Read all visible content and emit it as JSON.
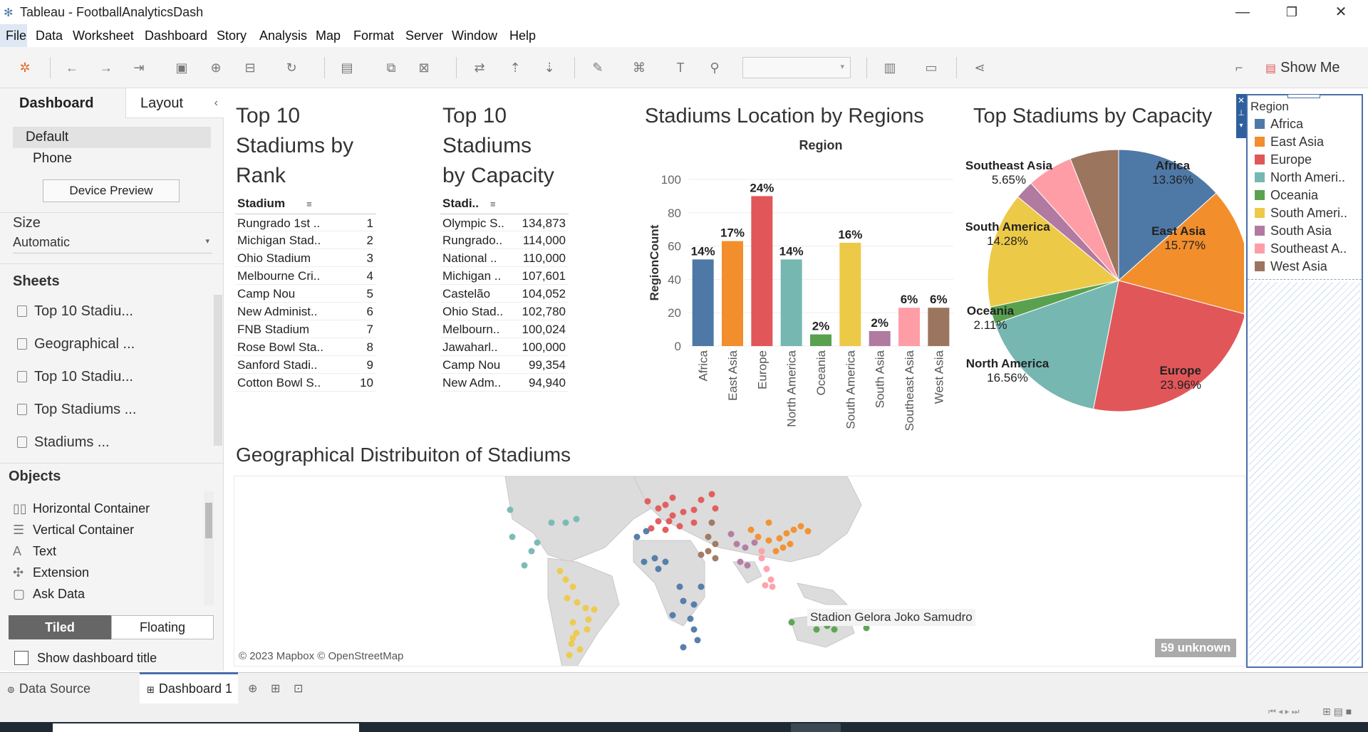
{
  "window": {
    "title": "Tableau - FootballAnalyticsDash"
  },
  "menu": [
    "File",
    "Data",
    "Worksheet",
    "Dashboard",
    "Story",
    "Analysis",
    "Map",
    "Format",
    "Server",
    "Window",
    "Help"
  ],
  "toolbar": {
    "show_me": "Show Me"
  },
  "left_pane": {
    "tabs": {
      "dashboard": "Dashboard",
      "layout": "Layout"
    },
    "device": {
      "default": "Default",
      "phone": "Phone",
      "preview_button": "Device Preview"
    },
    "size": {
      "label": "Size",
      "value": "Automatic"
    },
    "sheets": {
      "label": "Sheets",
      "items": [
        "Top 10 Stadiu...",
        "Geographical ...",
        "Top 10 Stadiu...",
        "Top Stadiums ...",
        "Stadiums ..."
      ]
    },
    "objects": {
      "label": "Objects",
      "items": [
        "Horizontal Container",
        "Vertical Container",
        "Text",
        "Extension",
        "Ask Data"
      ]
    },
    "layout_mode": {
      "tiled": "Tiled",
      "floating": "Floating"
    },
    "show_title": "Show dashboard title"
  },
  "rank_table": {
    "title_lines": [
      "Top 10",
      "Stadiums by",
      "Rank"
    ],
    "header": "Stadium",
    "rows": [
      {
        "name": "Rungrado 1st ..",
        "rank": "1"
      },
      {
        "name": "Michigan Stad..",
        "rank": "2"
      },
      {
        "name": "Ohio Stadium",
        "rank": "3"
      },
      {
        "name": "Melbourne Cri..",
        "rank": "4"
      },
      {
        "name": "Camp Nou",
        "rank": "5"
      },
      {
        "name": "New Administ..",
        "rank": "6"
      },
      {
        "name": "FNB Stadium",
        "rank": "7"
      },
      {
        "name": "Rose Bowl Sta..",
        "rank": "8"
      },
      {
        "name": "Sanford Stadi..",
        "rank": "9"
      },
      {
        "name": "Cotton Bowl S..",
        "rank": "10"
      }
    ]
  },
  "capacity_table": {
    "title_lines": [
      "Top 10",
      "Stadiums",
      "by Capacity"
    ],
    "header": "Stadi..",
    "rows": [
      {
        "name": "Olympic S..",
        "cap": "134,873"
      },
      {
        "name": "Rungrado..",
        "cap": "114,000"
      },
      {
        "name": "National ..",
        "cap": "110,000"
      },
      {
        "name": "Michigan ..",
        "cap": "107,601"
      },
      {
        "name": "Castelão",
        "cap": "104,052"
      },
      {
        "name": "Ohio Stad..",
        "cap": "102,780"
      },
      {
        "name": "Melbourn..",
        "cap": "100,024"
      },
      {
        "name": "Jawaharl..",
        "cap": "100,000"
      },
      {
        "name": "Camp Nou",
        "cap": "99,354"
      },
      {
        "name": "New Adm..",
        "cap": "94,940"
      }
    ]
  },
  "colors": {
    "Africa": "#4e79a7",
    "East Asia": "#f28e2b",
    "Europe": "#e15759",
    "North America": "#76b7b2",
    "Oceania": "#59a14f",
    "South America": "#edc948",
    "South Asia": "#b07aa1",
    "Southeast Asia": "#ff9da7",
    "West Asia": "#9c755f"
  },
  "chart_data": [
    {
      "type": "bar",
      "title": "Stadiums Location by Regions",
      "xlabel": "Region",
      "ylabel": "RegionCount",
      "ylim": [
        0,
        100
      ],
      "yticks": [
        0,
        20,
        40,
        60,
        80,
        100
      ],
      "categories": [
        "Africa",
        "East Asia",
        "Europe",
        "North America",
        "Oceania",
        "South America",
        "South Asia",
        "Southeast Asia",
        "West Asia"
      ],
      "values": [
        52,
        63,
        90,
        52,
        7,
        62,
        9,
        23,
        23
      ],
      "labels": [
        "14%",
        "17%",
        "24%",
        "14%",
        "2%",
        "16%",
        "2%",
        "6%",
        "6%"
      ]
    },
    {
      "type": "pie",
      "title": "Top Stadiums by Capacity",
      "slices": [
        {
          "label": "Africa",
          "pct": "13.36%",
          "value": 13.36
        },
        {
          "label": "East Asia",
          "pct": "15.77%",
          "value": 15.77
        },
        {
          "label": "Europe",
          "pct": "23.96%",
          "value": 23.96
        },
        {
          "label": "North America",
          "pct": "16.56%",
          "value": 16.56
        },
        {
          "label": "Oceania",
          "pct": "2.11%",
          "value": 2.11
        },
        {
          "label": "South America",
          "pct": "14.28%",
          "value": 14.28
        },
        {
          "label": "South Asia",
          "value": 2.3
        },
        {
          "label": "Southeast Asia",
          "pct": "5.65%",
          "value": 5.65
        },
        {
          "label": "West Asia",
          "value": 6.01
        }
      ]
    }
  ],
  "map": {
    "title": "Geographical Distribuiton of Stadiums",
    "tooltip": "Stadion Gelora Joko Samudro",
    "attribution": "© 2023 Mapbox © OpenStreetMap",
    "unknown": "59 unknown"
  },
  "legend": {
    "title": "Region",
    "items": [
      "Africa",
      "East Asia",
      "Europe",
      "North Ameri..",
      "Oceania",
      "South Ameri..",
      "South Asia",
      "Southeast A..",
      "West Asia"
    ],
    "keys": [
      "Africa",
      "East Asia",
      "Europe",
      "North America",
      "Oceania",
      "South America",
      "South Asia",
      "Southeast Asia",
      "West Asia"
    ]
  },
  "bottom": {
    "data_source": "Data Source",
    "dashboard_tab": "Dashboard 1"
  }
}
